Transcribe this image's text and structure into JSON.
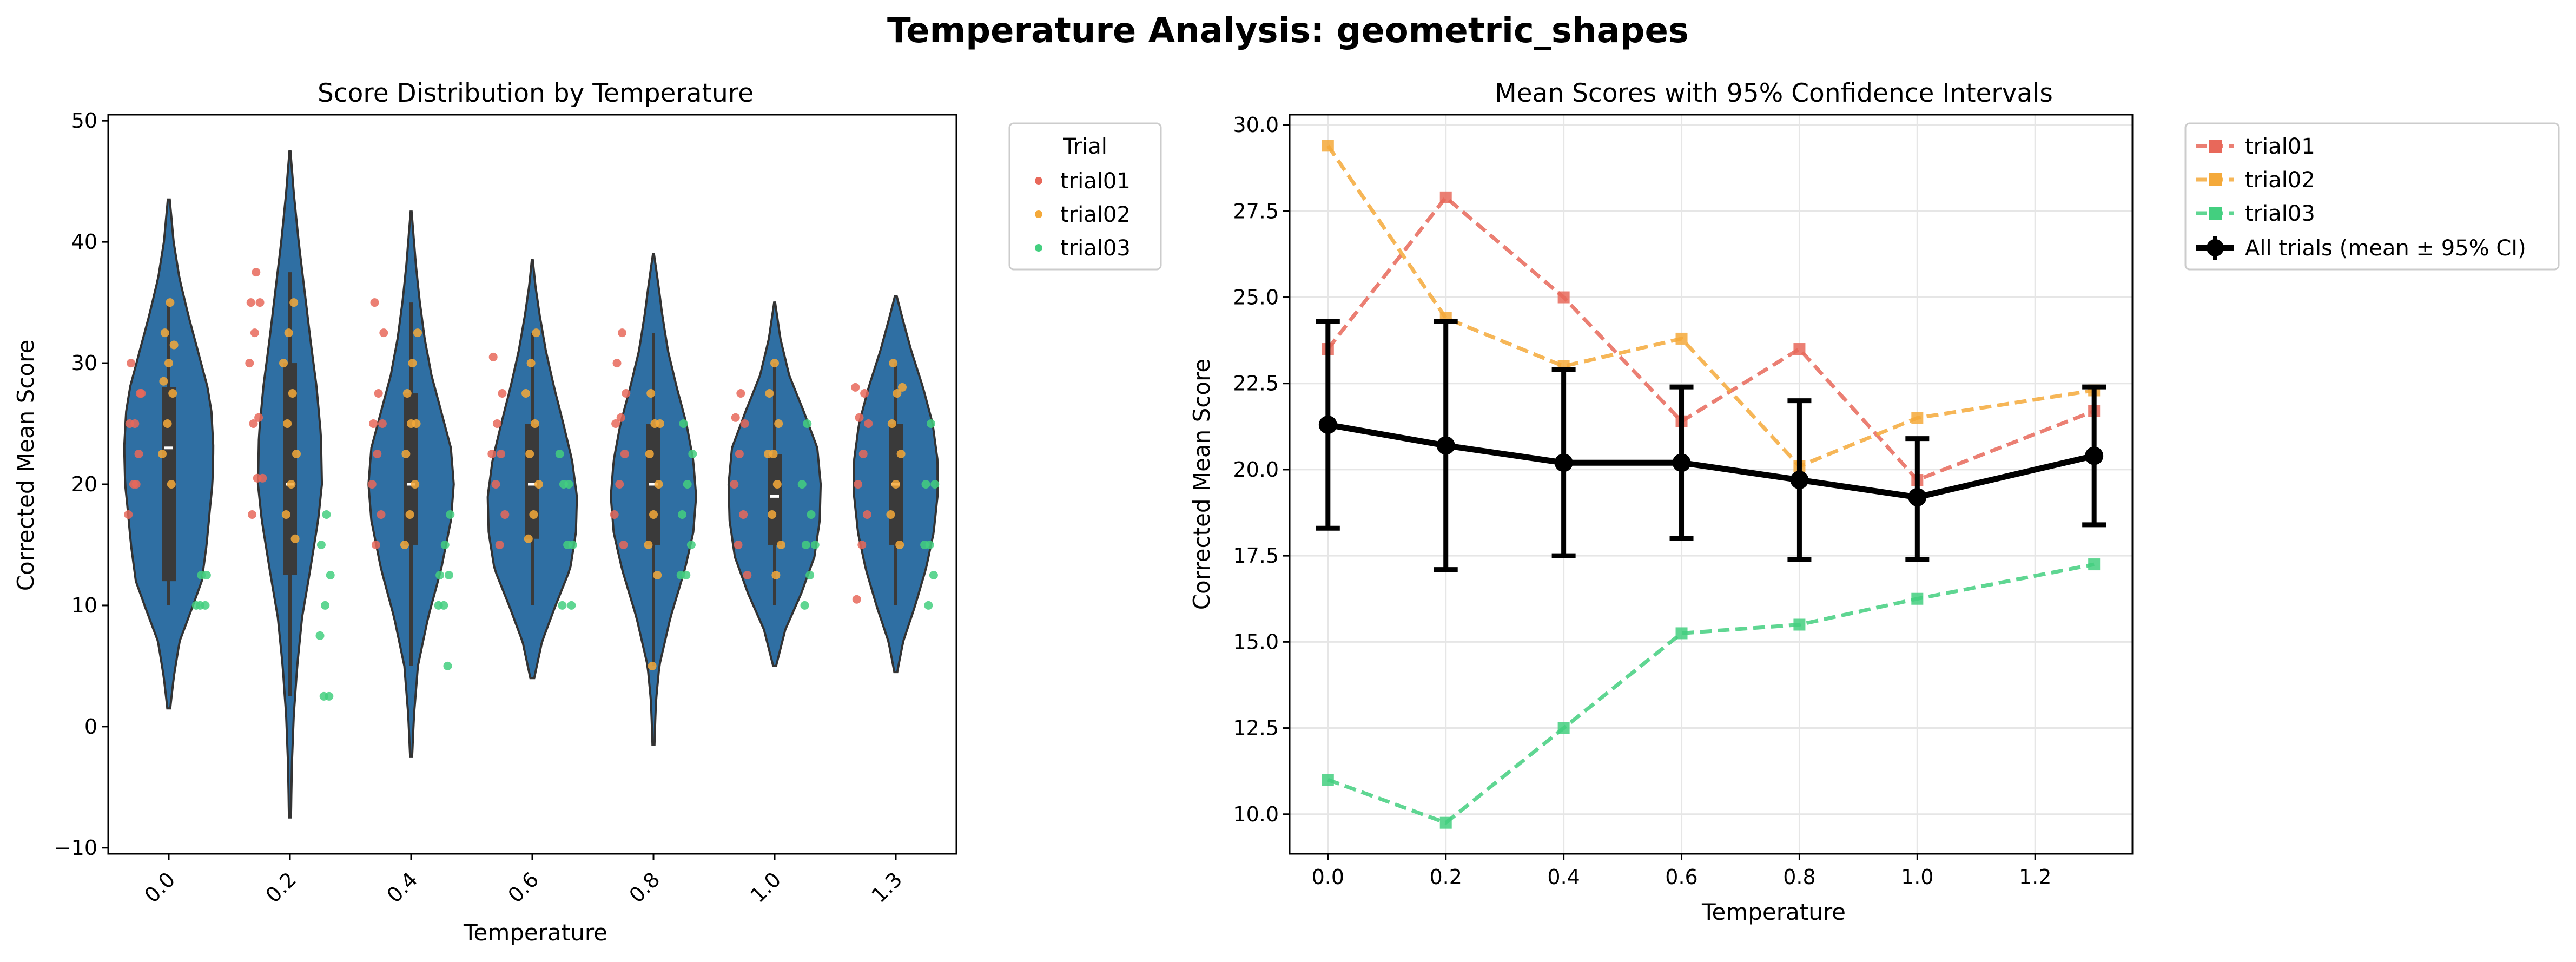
{
  "suptitle": "Temperature Analysis: geometric_shapes",
  "colors": {
    "violin": "#2f6fa3",
    "violin_edge": "#333333",
    "box": "#3a3a3a",
    "trial01": "#e8685a",
    "trial02": "#f4a93a",
    "trial03": "#43cf7f",
    "all": "#000000"
  },
  "chart_data": [
    {
      "type": "violin",
      "title": "Score Distribution by Temperature",
      "xlabel": "Temperature",
      "ylabel": "Corrected Mean Score",
      "ylim": [
        -10.5,
        50.5
      ],
      "yticks": [
        -10,
        0,
        10,
        20,
        30,
        40,
        50
      ],
      "ytick_labels": [
        "−10",
        "0",
        "10",
        "20",
        "30",
        "40",
        "50"
      ],
      "categories": [
        "0.0",
        "0.2",
        "0.4",
        "0.6",
        "0.8",
        "1.0",
        "1.3"
      ],
      "legend_title": "Trial",
      "legend": [
        "trial01",
        "trial02",
        "trial03"
      ],
      "violins": [
        {
          "min": 1.5,
          "max": 43.5,
          "q1": 12,
          "median": 23,
          "q3": 28,
          "whisker_low": 10,
          "whisker_high": 35,
          "profile": [
            [
              1.5,
              0.03
            ],
            [
              4,
              0.1
            ],
            [
              7,
              0.22
            ],
            [
              10,
              0.5
            ],
            [
              12,
              0.68
            ],
            [
              15,
              0.78
            ],
            [
              18,
              0.85
            ],
            [
              20,
              0.9
            ],
            [
              23,
              0.92
            ],
            [
              26,
              0.88
            ],
            [
              28,
              0.8
            ],
            [
              31,
              0.6
            ],
            [
              34,
              0.4
            ],
            [
              37,
              0.22
            ],
            [
              40,
              0.1
            ],
            [
              43.5,
              0.02
            ]
          ]
        },
        {
          "min": -7.5,
          "max": 47.5,
          "q1": 12.5,
          "median": 20,
          "q3": 30,
          "whisker_low": 2.5,
          "whisker_high": 37.5,
          "profile": [
            [
              -7.5,
              0.02
            ],
            [
              -3,
              0.04
            ],
            [
              1,
              0.08
            ],
            [
              5,
              0.15
            ],
            [
              9,
              0.25
            ],
            [
              13,
              0.42
            ],
            [
              17,
              0.58
            ],
            [
              20,
              0.66
            ],
            [
              24,
              0.64
            ],
            [
              28,
              0.55
            ],
            [
              32,
              0.42
            ],
            [
              36,
              0.3
            ],
            [
              40,
              0.18
            ],
            [
              44,
              0.08
            ],
            [
              47.5,
              0.01
            ]
          ]
        },
        {
          "min": -2.5,
          "max": 42.5,
          "q1": 15,
          "median": 20,
          "q3": 27.5,
          "whisker_low": 5,
          "whisker_high": 35,
          "profile": [
            [
              -2.5,
              0.02
            ],
            [
              1,
              0.06
            ],
            [
              5,
              0.14
            ],
            [
              9,
              0.35
            ],
            [
              13,
              0.62
            ],
            [
              17,
              0.82
            ],
            [
              20,
              0.88
            ],
            [
              23,
              0.82
            ],
            [
              26,
              0.62
            ],
            [
              29,
              0.42
            ],
            [
              32,
              0.28
            ],
            [
              35,
              0.18
            ],
            [
              38,
              0.1
            ],
            [
              42.5,
              0.01
            ]
          ]
        },
        {
          "min": 4,
          "max": 38.5,
          "q1": 15.5,
          "median": 20,
          "q3": 25,
          "whisker_low": 10,
          "whisker_high": 32.5,
          "profile": [
            [
              4,
              0.04
            ],
            [
              7,
              0.2
            ],
            [
              10,
              0.48
            ],
            [
              13,
              0.78
            ],
            [
              16,
              0.9
            ],
            [
              19,
              0.92
            ],
            [
              22,
              0.82
            ],
            [
              25,
              0.64
            ],
            [
              28,
              0.45
            ],
            [
              31,
              0.28
            ],
            [
              34,
              0.15
            ],
            [
              36.5,
              0.06
            ],
            [
              38.5,
              0.01
            ]
          ]
        },
        {
          "min": -1.5,
          "max": 39,
          "q1": 15,
          "median": 20,
          "q3": 25,
          "whisker_low": 5,
          "whisker_high": 32.5,
          "profile": [
            [
              -1.5,
              0.02
            ],
            [
              2,
              0.05
            ],
            [
              5,
              0.12
            ],
            [
              9,
              0.35
            ],
            [
              13,
              0.65
            ],
            [
              16,
              0.82
            ],
            [
              19,
              0.88
            ],
            [
              22,
              0.82
            ],
            [
              25,
              0.68
            ],
            [
              28,
              0.48
            ],
            [
              31,
              0.3
            ],
            [
              34,
              0.18
            ],
            [
              36.5,
              0.1
            ],
            [
              39,
              0.01
            ]
          ]
        },
        {
          "min": 5,
          "max": 35,
          "q1": 15,
          "median": 19,
          "q3": 22.5,
          "whisker_low": 10,
          "whisker_high": 30,
          "profile": [
            [
              5,
              0.03
            ],
            [
              8,
              0.22
            ],
            [
              11,
              0.55
            ],
            [
              14,
              0.82
            ],
            [
              17,
              0.93
            ],
            [
              20,
              0.95
            ],
            [
              23,
              0.88
            ],
            [
              26,
              0.6
            ],
            [
              29,
              0.3
            ],
            [
              32,
              0.12
            ],
            [
              35,
              0.01
            ]
          ]
        },
        {
          "min": 4.5,
          "max": 35.5,
          "q1": 15,
          "median": 20,
          "q3": 25,
          "whisker_low": 10,
          "whisker_high": 30,
          "profile": [
            [
              4.5,
              0.03
            ],
            [
              7,
              0.15
            ],
            [
              10,
              0.4
            ],
            [
              13,
              0.62
            ],
            [
              16,
              0.78
            ],
            [
              19,
              0.86
            ],
            [
              22,
              0.86
            ],
            [
              25,
              0.76
            ],
            [
              28,
              0.56
            ],
            [
              31,
              0.32
            ],
            [
              33.5,
              0.15
            ],
            [
              35.5,
              0.02
            ]
          ]
        }
      ],
      "points": {
        "trial01": [
          [
            17.5,
            20,
            22.5,
            25,
            25,
            27.5,
            30,
            20,
            27.5
          ],
          [
            17.5,
            20.5,
            20.5,
            25,
            25.5,
            30,
            32.5,
            35,
            35,
            37.5
          ],
          [
            15,
            17.5,
            20,
            22.5,
            25,
            25,
            27.5,
            32.5,
            35
          ],
          [
            15,
            17.5,
            20,
            22.5,
            22.5,
            25,
            27.5,
            30.5
          ],
          [
            15,
            17.5,
            20,
            22.5,
            25,
            25.5,
            27.5,
            30,
            32.5
          ],
          [
            12.5,
            15,
            17.5,
            20,
            22.5,
            25,
            25.5,
            27.5
          ],
          [
            10.5,
            15,
            17.5,
            20,
            22.5,
            25,
            25.5,
            27.5,
            28
          ]
        ],
        "trial02": [
          [
            20,
            22.5,
            25,
            27.5,
            28.5,
            30,
            31.5,
            32.5,
            35
          ],
          [
            15.5,
            17.5,
            20,
            22.5,
            25,
            27.5,
            30,
            32.5,
            35
          ],
          [
            15,
            17.5,
            20,
            22.5,
            25,
            25,
            27.5,
            30,
            32.5
          ],
          [
            15.5,
            17.5,
            20,
            22.5,
            25,
            27.5,
            30,
            32.5
          ],
          [
            5,
            12.5,
            15,
            17.5,
            20,
            22.5,
            25,
            25,
            27.5
          ],
          [
            12.5,
            15,
            17.5,
            20,
            22.5,
            22.5,
            25,
            27.5,
            30
          ],
          [
            15,
            17.5,
            20,
            22.5,
            25,
            27.5,
            28,
            30
          ]
        ],
        "trial03": [
          [
            10,
            10,
            10,
            12.5,
            12.5
          ],
          [
            2.5,
            2.5,
            7.5,
            10,
            12.5,
            15,
            17.5
          ],
          [
            5,
            10,
            10,
            12.5,
            12.5,
            15,
            17.5
          ],
          [
            10,
            10,
            15,
            15,
            20,
            20,
            22.5
          ],
          [
            12.5,
            12.5,
            15,
            17.5,
            20,
            22.5,
            25
          ],
          [
            10,
            12.5,
            15,
            15,
            17.5,
            20,
            25
          ],
          [
            10,
            12.5,
            15,
            15,
            20,
            20,
            25
          ]
        ]
      }
    },
    {
      "type": "line",
      "title": "Mean Scores with 95% Confidence Intervals",
      "xlabel": "Temperature",
      "ylabel": "Corrected Mean Score",
      "xlim": [
        -0.065,
        1.365
      ],
      "ylim": [
        8.85,
        30.3
      ],
      "xticks": [
        0,
        0.2,
        0.4,
        0.6,
        0.8,
        1.0,
        1.2
      ],
      "xtick_labels": [
        "0.0",
        "0.2",
        "0.4",
        "0.6",
        "0.8",
        "1.0",
        "1.2"
      ],
      "yticks": [
        10,
        12.5,
        15,
        17.5,
        20,
        22.5,
        25,
        27.5,
        30
      ],
      "ytick_labels": [
        "10.0",
        "12.5",
        "15.0",
        "17.5",
        "20.0",
        "22.5",
        "25.0",
        "27.5",
        "30.0"
      ],
      "grid": true,
      "x": [
        0.0,
        0.2,
        0.4,
        0.6,
        0.8,
        1.0,
        1.3
      ],
      "series": [
        {
          "name": "trial01",
          "values": [
            23.5,
            27.9,
            25.0,
            21.4,
            23.5,
            19.7,
            21.7
          ]
        },
        {
          "name": "trial02",
          "values": [
            29.4,
            24.4,
            23.0,
            23.8,
            20.1,
            21.5,
            22.3
          ]
        },
        {
          "name": "trial03",
          "values": [
            11.0,
            9.75,
            12.5,
            15.25,
            15.5,
            16.25,
            17.25
          ]
        }
      ],
      "mean": {
        "name": "All trials (mean ± 95% CI)",
        "values": [
          21.3,
          20.7,
          20.2,
          20.2,
          19.7,
          19.2,
          20.4
        ],
        "ci_low": [
          18.3,
          17.1,
          17.5,
          18.0,
          17.4,
          17.4,
          18.4
        ],
        "ci_high": [
          24.3,
          24.3,
          22.9,
          22.4,
          22.0,
          20.9,
          22.4
        ]
      },
      "legend": [
        "trial01",
        "trial02",
        "trial03",
        "All trials (mean ± 95% CI)"
      ]
    }
  ]
}
